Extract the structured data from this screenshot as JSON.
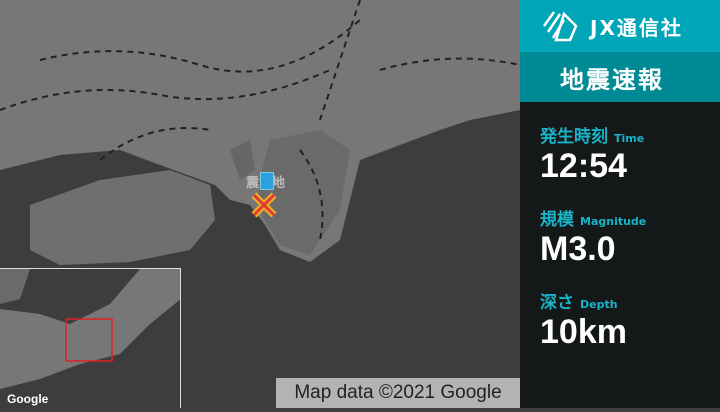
{
  "header": {
    "brand": "JX通信社",
    "title": "地震速報"
  },
  "info": [
    {
      "label": "発生時刻",
      "sub": "Time",
      "value": "12:54"
    },
    {
      "label": "規模",
      "sub": "Magnitude",
      "value": "M3.0"
    },
    {
      "label": "深さ",
      "sub": "Depth",
      "value": "10km"
    }
  ],
  "map": {
    "epicenter_label": "震源地",
    "attribution": "Map data ©2021 Google",
    "google": "Google",
    "marker_color": "#e03a3a"
  },
  "colors": {
    "brand": "#00a5b8",
    "title_bg": "#008a95",
    "accent": "#19b4c8",
    "panel": "#141818"
  }
}
